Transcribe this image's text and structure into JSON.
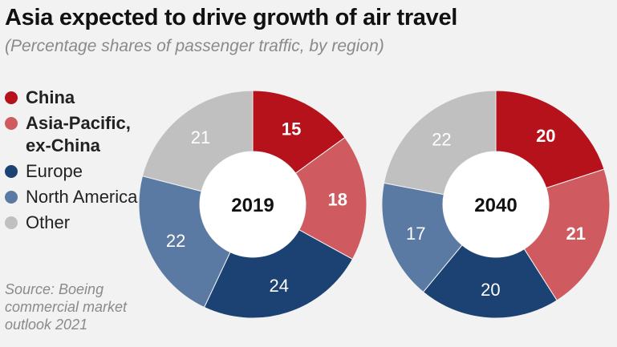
{
  "title": "Asia expected to drive growth of air travel",
  "subtitle": "(Percentage shares of passenger traffic, by region)",
  "source": "Source: Boeing commercial market outlook 2021",
  "chart_data": {
    "type": "pie",
    "subtype": "donut",
    "categories": [
      "China",
      "Asia-Pacific, ex-China",
      "Europe",
      "North America",
      "Other"
    ],
    "colors": [
      "#b5121b",
      "#cf5a60",
      "#1b4272",
      "#5a7aa3",
      "#c0c0c0"
    ],
    "legend_position": "left",
    "charts": [
      {
        "center_label": "2019",
        "values": [
          15,
          18,
          24,
          22,
          21
        ]
      },
      {
        "center_label": "2040",
        "values": [
          20,
          21,
          20,
          17,
          22
        ]
      }
    ]
  },
  "legend": [
    {
      "label": "China",
      "bold": true
    },
    {
      "label": "Asia-Pacific, ex-China",
      "bold": true
    },
    {
      "label": "Europe",
      "bold": false
    },
    {
      "label": "North America",
      "bold": false
    },
    {
      "label": "Other",
      "bold": false
    }
  ]
}
